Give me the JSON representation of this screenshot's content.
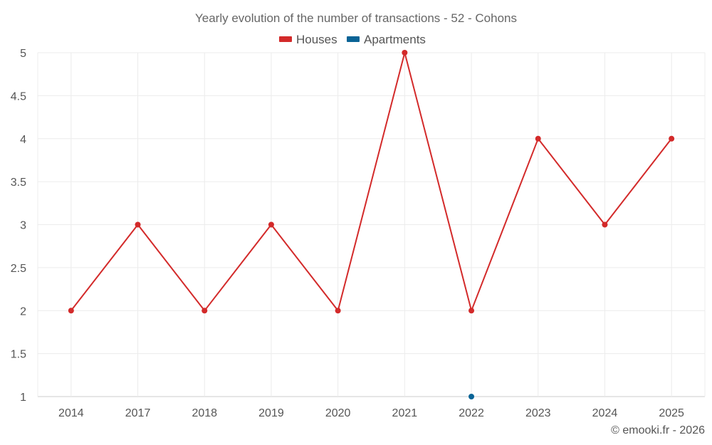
{
  "chart_data": {
    "type": "line",
    "title": "Yearly evolution of the number of transactions - 52 - Cohons",
    "categories": [
      "2014",
      "2017",
      "2018",
      "2019",
      "2020",
      "2021",
      "2022",
      "2023",
      "2024",
      "2025"
    ],
    "series": [
      {
        "name": "Houses",
        "color": "#d32a2a",
        "values": [
          2,
          3,
          2,
          3,
          2,
          5,
          2,
          4,
          3,
          4
        ]
      },
      {
        "name": "Apartments",
        "color": "#0a6496",
        "values": [
          null,
          null,
          null,
          null,
          null,
          null,
          1,
          null,
          null,
          null
        ]
      }
    ],
    "ylim": [
      1,
      5
    ],
    "yticks": [
      "1",
      "1.5",
      "2",
      "2.5",
      "3",
      "3.5",
      "4",
      "4.5",
      "5"
    ],
    "legend_position": "top-center",
    "grid": true
  },
  "credit": "© emooki.fr - 2026"
}
